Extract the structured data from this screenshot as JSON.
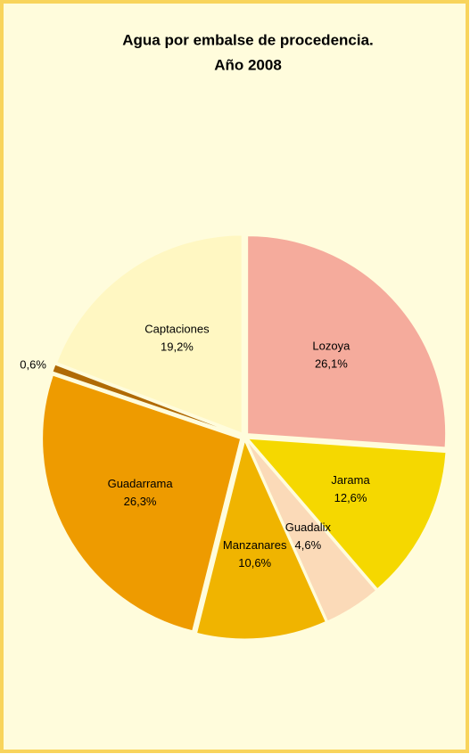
{
  "chart_data": {
    "type": "pie",
    "title": [
      "Agua por embalse de procedencia.",
      "Año 2008"
    ],
    "categories": [
      "Lozoya",
      "Jarama",
      "Guadalix",
      "Manzanares",
      "Guadarrama",
      null,
      "Captaciones"
    ],
    "values": [
      26.1,
      12.6,
      4.6,
      10.6,
      26.3,
      0.6,
      19.2
    ],
    "value_labels": [
      "26,1%",
      "12,6%",
      "4,6%",
      "10,6%",
      "26,3%",
      "0,6%",
      "19,2%"
    ],
    "colors": [
      "#f5ab9c",
      "#f5d800",
      "#fbdab8",
      "#f0b400",
      "#ee9b00",
      "#b06a05",
      "#fff7c2"
    ]
  }
}
